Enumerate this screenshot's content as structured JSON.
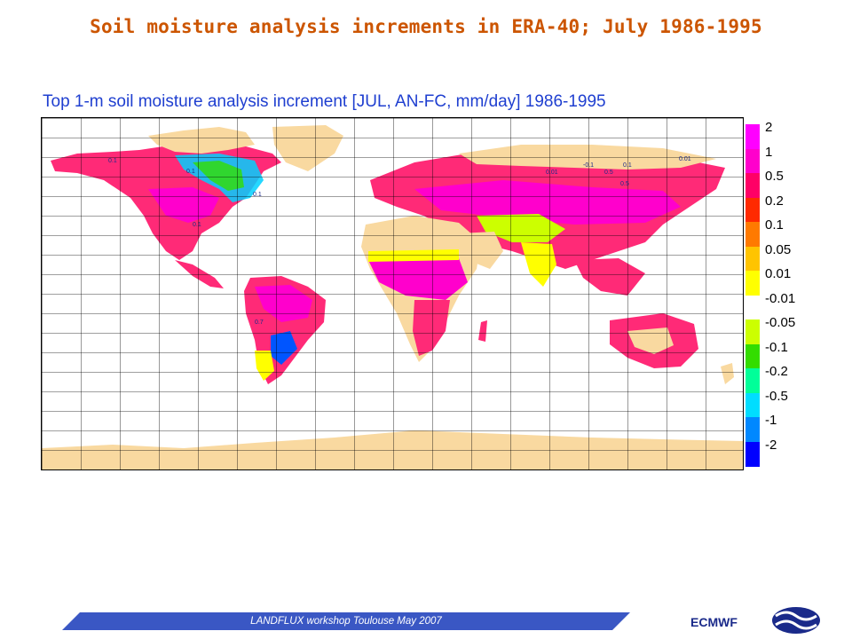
{
  "slide": {
    "title": "Soil moisture analysis increments in ERA-40; July 1986-1995"
  },
  "map": {
    "title": "Top 1-m soil moisture analysis increment [JUL, AN-FC, mm/day] 1986-1995",
    "contour_labels": [
      "0.1",
      "0.1",
      "0.1",
      "0.1",
      "0.7",
      "0.01",
      "-0.1",
      "0.5",
      "0.1",
      "0.5",
      "0.01"
    ]
  },
  "legend": {
    "items": [
      {
        "label": "2",
        "color": "#ff00ff"
      },
      {
        "label": "1",
        "color": "#ff00cc"
      },
      {
        "label": "0.5",
        "color": "#ff0066"
      },
      {
        "label": "0.2",
        "color": "#ff2a00"
      },
      {
        "label": "0.1",
        "color": "#ff7a00"
      },
      {
        "label": "0.05",
        "color": "#ffc400"
      },
      {
        "label": "0.01",
        "color": "#ffff00"
      },
      {
        "label": "-0.01",
        "color": "#ffffff"
      },
      {
        "label": "-0.05",
        "color": "#ccff00"
      },
      {
        "label": "-0.1",
        "color": "#33dd00"
      },
      {
        "label": "-0.2",
        "color": "#00ff99"
      },
      {
        "label": "-0.5",
        "color": "#00ddff"
      },
      {
        "label": "-1",
        "color": "#0088ff"
      },
      {
        "label": "-2",
        "color": "#0000ff"
      }
    ],
    "bottom_color": "#0000ff"
  },
  "footer": {
    "text": "LANDFLUX workshop Toulouse May 2007",
    "bar_color": "#3a57c4",
    "org": "ECMWF"
  }
}
